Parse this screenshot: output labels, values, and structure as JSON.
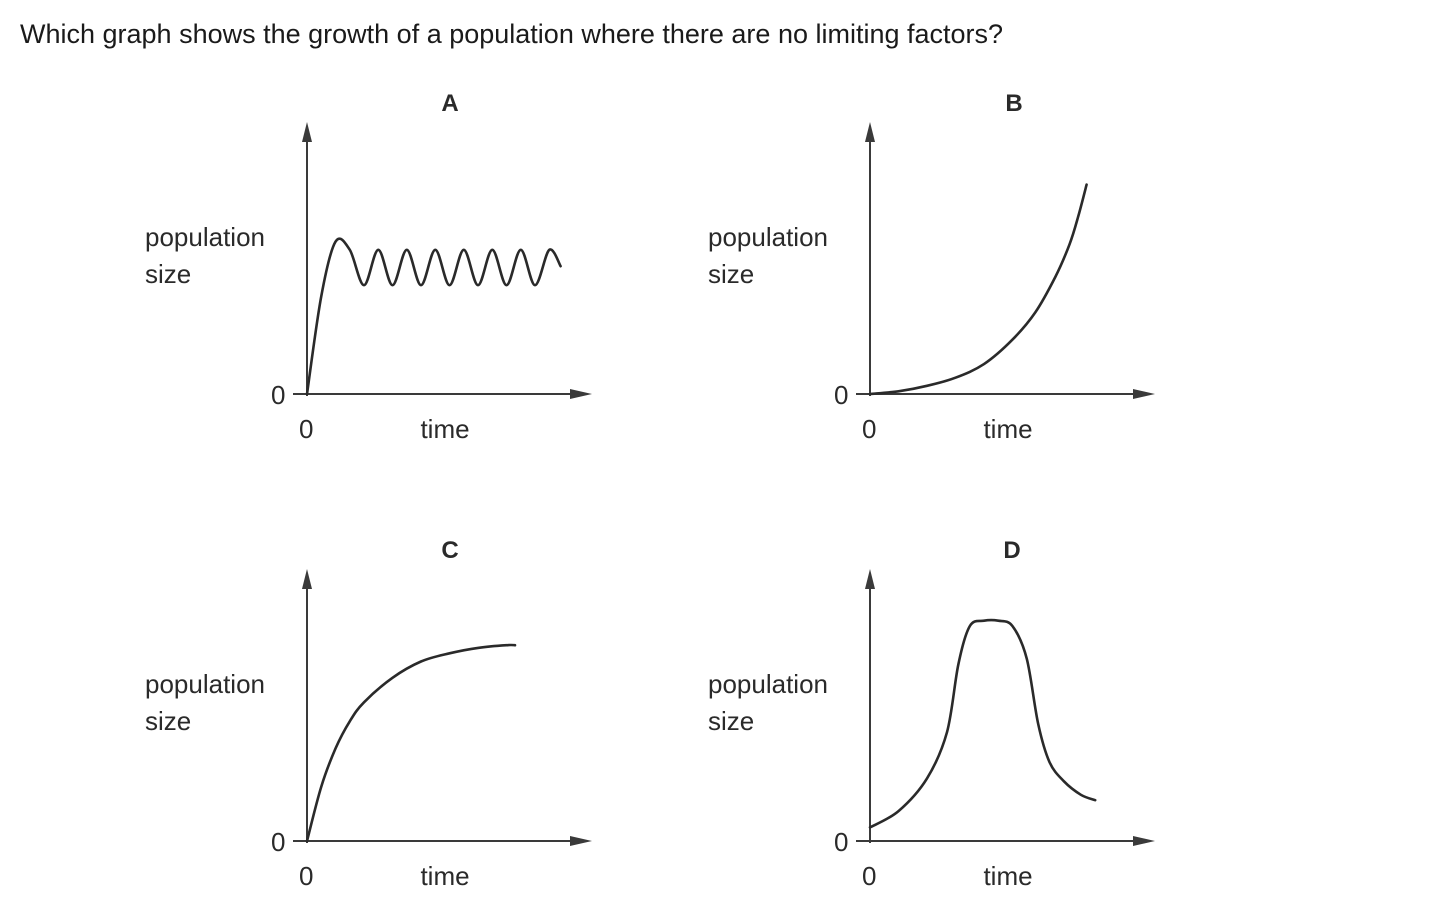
{
  "question": "Which graph shows the growth of a population where there are no limiting factors?",
  "colors": {
    "text": "#1a1a1a",
    "axis": "#3a3a3a",
    "curve": "#2a2a2a",
    "background": "#ffffff"
  },
  "chart_data": [
    {
      "type": "line",
      "title": "A",
      "ylabel": [
        "population",
        "size"
      ],
      "xlabel": "time",
      "x_origin_label": "0",
      "y_origin_label": "0",
      "shape": "rapid rise then oscillation about a constant level",
      "xlim": [
        0,
        10
      ],
      "ylim": [
        0,
        10
      ],
      "series": [
        {
          "x": [
            0,
            0.5,
            1.0,
            1.5,
            2.0,
            2.5,
            3.0,
            3.5,
            4.0,
            4.5,
            5.0,
            5.5,
            6.0,
            6.5,
            7.0,
            7.5,
            8.0,
            8.5,
            8.9
          ],
          "y": [
            0,
            3.6,
            5.6,
            5.3,
            4.0,
            5.3,
            4.0,
            5.3,
            4.0,
            5.3,
            4.0,
            5.3,
            4.0,
            5.3,
            4.0,
            5.3,
            4.0,
            5.3,
            4.7
          ]
        }
      ]
    },
    {
      "type": "line",
      "title": "B",
      "ylabel": [
        "population",
        "size"
      ],
      "xlabel": "time",
      "x_origin_label": "0",
      "y_origin_label": "0",
      "shape": "exponential (J-shaped) growth",
      "xlim": [
        0,
        10
      ],
      "ylim": [
        0,
        10
      ],
      "series": [
        {
          "x": [
            0,
            1,
            2,
            3,
            4,
            5,
            5.8,
            6.5,
            7.0,
            7.3,
            7.6
          ],
          "y": [
            0,
            0.1,
            0.3,
            0.6,
            1.1,
            2.0,
            3.0,
            4.3,
            5.5,
            6.5,
            7.7
          ]
        }
      ]
    },
    {
      "type": "line",
      "title": "C",
      "ylabel": [
        "population",
        "size"
      ],
      "xlabel": "time",
      "x_origin_label": "0",
      "y_origin_label": "0",
      "shape": "rapid rise then levelling off",
      "xlim": [
        0,
        10
      ],
      "ylim": [
        0,
        10
      ],
      "series": [
        {
          "x": [
            0,
            0.5,
            1,
            1.5,
            2,
            3,
            4,
            5,
            6,
            7,
            7.3
          ],
          "y": [
            0,
            2.0,
            3.4,
            4.4,
            5.1,
            6.0,
            6.6,
            6.9,
            7.1,
            7.2,
            7.2
          ]
        }
      ]
    },
    {
      "type": "line",
      "title": "D",
      "ylabel": [
        "population",
        "size"
      ],
      "xlabel": "time",
      "x_origin_label": "0",
      "y_origin_label": "0",
      "shape": "rise to a peak then decline",
      "xlim": [
        0,
        10
      ],
      "ylim": [
        0,
        10
      ],
      "series": [
        {
          "x": [
            0,
            1,
            2,
            2.7,
            3.1,
            3.5,
            4.0,
            4.5,
            5.0,
            5.5,
            5.9,
            6.3,
            6.8,
            7.4,
            7.9
          ],
          "y": [
            0.5,
            1.1,
            2.3,
            4.0,
            6.5,
            7.9,
            8.1,
            8.1,
            7.9,
            6.7,
            4.3,
            2.9,
            2.2,
            1.7,
            1.5
          ]
        }
      ]
    }
  ]
}
